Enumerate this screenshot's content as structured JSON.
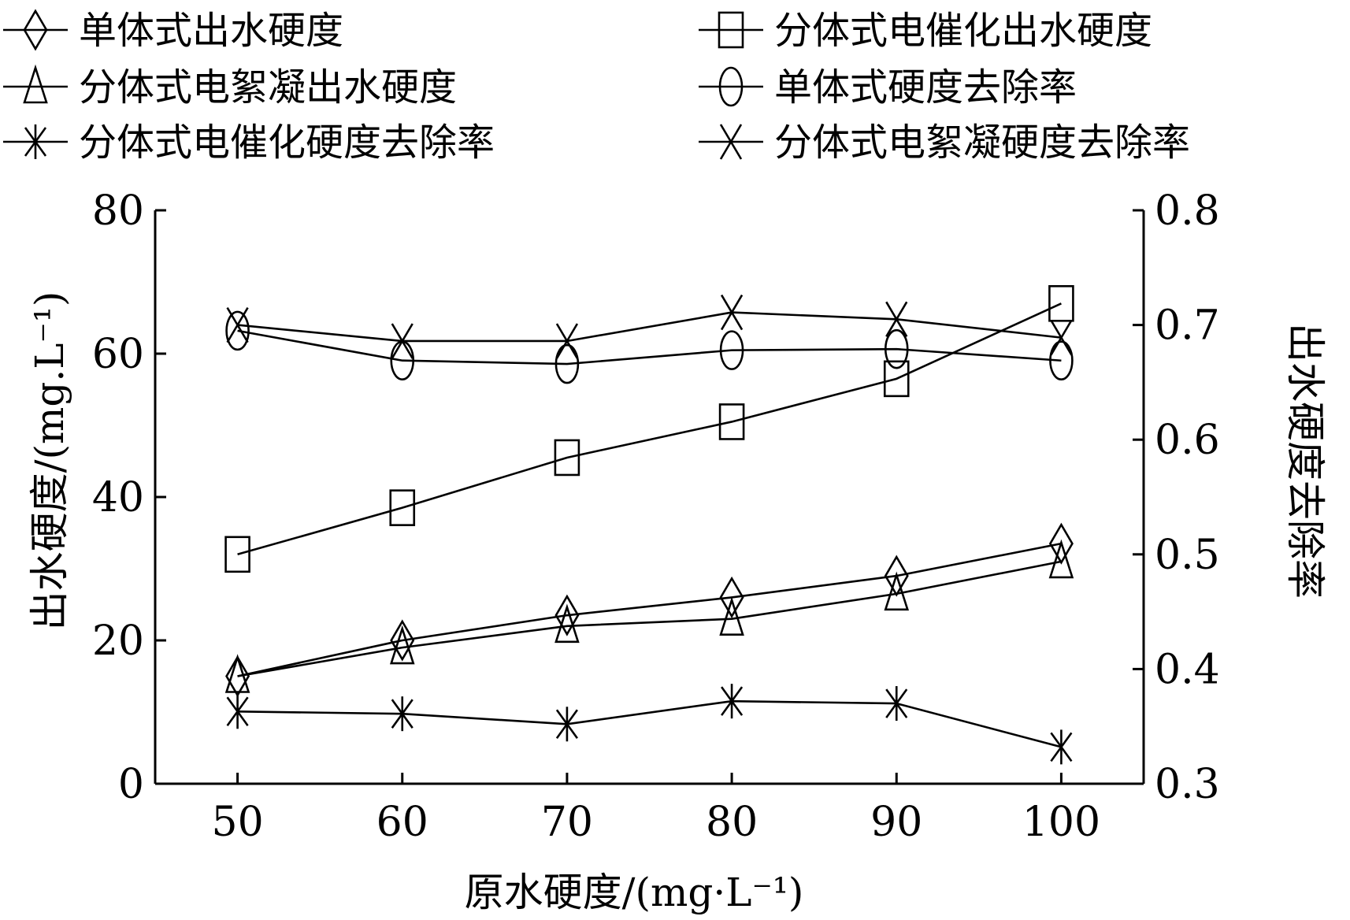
{
  "chart_data": {
    "type": "line",
    "xlabel": "原水硬度/(mg·L⁻¹)",
    "ylabel": "出水硬度/(mg.L⁻¹)",
    "y2label": "出水硬度去除率",
    "x": [
      50,
      60,
      70,
      80,
      90,
      100
    ],
    "xticks": [
      "50",
      "60",
      "70",
      "80",
      "90",
      "100"
    ],
    "xlim": [
      45,
      105
    ],
    "ylim": [
      0,
      80
    ],
    "yticks": [
      "0",
      "20",
      "40",
      "60",
      "80"
    ],
    "y2lim": [
      0.3,
      0.8
    ],
    "y2ticks": [
      "0.3",
      "0.4",
      "0.5",
      "0.6",
      "0.7",
      "0.8"
    ],
    "grid": false,
    "legend_position": "top",
    "series": [
      {
        "name": "单体式出水硬度",
        "axis": "left",
        "marker": "diamond",
        "values": [
          15.0,
          20.0,
          23.5,
          26.0,
          29.0,
          33.5
        ]
      },
      {
        "name": "分体式电催化出水硬度",
        "axis": "left",
        "marker": "square",
        "values": [
          32.0,
          38.5,
          45.5,
          50.5,
          56.5,
          67.0
        ]
      },
      {
        "name": "分体式电絮凝出水硬度",
        "axis": "left",
        "marker": "triangle",
        "values": [
          15.0,
          19.0,
          22.0,
          23.0,
          26.5,
          31.0
        ]
      },
      {
        "name": "单体式硬度去除率",
        "axis": "right",
        "marker": "ellipse",
        "values": [
          0.695,
          0.669,
          0.666,
          0.678,
          0.679,
          0.669
        ]
      },
      {
        "name": "分体式电催化硬度去除率",
        "axis": "right",
        "marker": "asterisk",
        "values": [
          0.363,
          0.361,
          0.352,
          0.372,
          0.37,
          0.332
        ]
      },
      {
        "name": "分体式电絮凝硬度去除率",
        "axis": "right",
        "marker": "x",
        "values": [
          0.7,
          0.686,
          0.686,
          0.711,
          0.705,
          0.689
        ]
      }
    ]
  }
}
